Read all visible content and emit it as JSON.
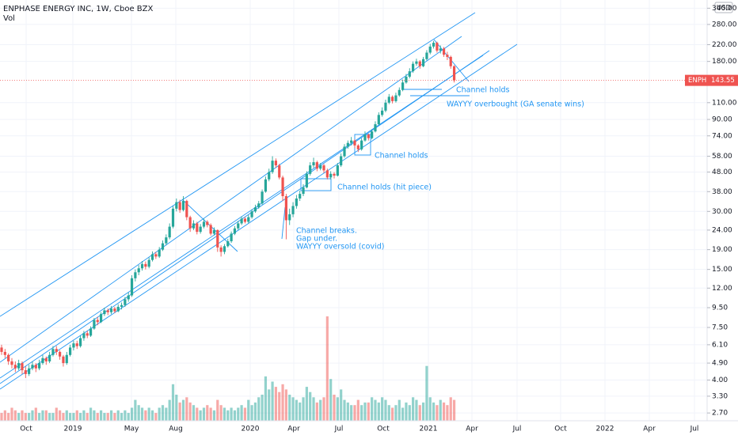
{
  "header": {
    "title": "ENPHASE ENERGY INC, 1W, Cboe BZX",
    "volume_label": "Vol",
    "currency": "USD",
    "symbol": "ENPH"
  },
  "chart_data": {
    "type": "candlestick",
    "x_labels": [
      "Oct",
      "2019",
      "May",
      "Aug",
      "2020",
      "Apr",
      "Jul",
      "Oct",
      "2021",
      "Apr",
      "Jul",
      "Oct",
      "2022",
      "Apr",
      "Jul"
    ],
    "open": [
      5.9,
      5.6,
      5.4,
      5.0,
      4.8,
      4.6,
      4.9,
      4.5,
      4.3,
      4.6,
      4.8,
      4.6,
      4.9,
      5.2,
      5.0,
      5.4,
      5.8,
      5.6,
      5.3,
      4.9,
      5.4,
      5.9,
      6.2,
      6.0,
      6.6,
      7.0,
      6.8,
      7.4,
      8.2,
      8.0,
      8.8,
      9.2,
      9.0,
      9.4,
      9.1,
      9.6,
      9.8,
      10.5,
      11.0,
      13.5,
      14.5,
      15.2,
      16.0,
      15.5,
      16.8,
      18.0,
      17.5,
      19.0,
      20.5,
      22.0,
      25.0,
      31.0,
      33.5,
      30.5,
      34.0,
      28.0,
      24.5,
      26.0,
      23.5,
      25.0,
      26.5,
      25.5,
      23.0,
      24.0,
      19.5,
      18.5,
      19.8,
      21.0,
      23.0,
      24.5,
      26.0,
      27.5,
      26.5,
      28.0,
      30.0,
      31.5,
      33.0,
      38.0,
      44.0,
      48.0,
      55.0,
      52.0,
      45.0,
      36.0,
      27.0,
      29.0,
      32.0,
      35.0,
      37.0,
      40.0,
      47.0,
      52.0,
      54.0,
      50.0,
      52.0,
      49.0,
      45.0,
      47.0,
      46.0,
      52.0,
      58.0,
      65.0,
      68.0,
      70.0,
      66.0,
      63.0,
      70.0,
      75.0,
      72.0,
      78.0,
      85.0,
      95.0,
      100.0,
      110.0,
      118.0,
      112.0,
      120.0,
      128.0,
      140.0,
      150.0,
      160.0,
      175.0,
      180.0,
      170.0,
      185.0,
      200.0,
      215.0,
      225.0,
      205.0,
      210.0,
      195.0,
      190.0,
      170.0
    ],
    "high": [
      6.1,
      5.8,
      5.5,
      5.2,
      5.0,
      5.1,
      5.0,
      4.7,
      4.8,
      5.0,
      4.9,
      5.1,
      5.4,
      5.3,
      5.6,
      6.0,
      6.0,
      5.7,
      5.4,
      5.6,
      6.1,
      6.4,
      6.4,
      6.8,
      7.2,
      7.2,
      7.6,
      8.4,
      8.5,
      9.0,
      9.5,
      9.4,
      9.7,
      9.6,
      9.9,
      10.1,
      10.8,
      11.4,
      14.0,
      15.0,
      15.8,
      16.6,
      16.5,
      17.3,
      18.6,
      18.5,
      19.6,
      21.2,
      22.8,
      26.0,
      32.0,
      35.0,
      34.5,
      36.0,
      34.5,
      28.5,
      27.0,
      26.5,
      25.8,
      27.5,
      27.0,
      26.0,
      24.8,
      24.2,
      20.0,
      20.3,
      21.6,
      23.6,
      25.2,
      26.8,
      28.3,
      28.0,
      28.8,
      30.8,
      32.5,
      34.0,
      39.0,
      45.5,
      50.0,
      58.0,
      56.5,
      53.0,
      46.0,
      37.0,
      31.0,
      33.5,
      36.5,
      38.5,
      41.5,
      48.5,
      54.0,
      57.0,
      55.0,
      53.5,
      53.0,
      50.0,
      48.5,
      48.0,
      53.5,
      60.0,
      67.0,
      70.0,
      73.0,
      71.0,
      67.0,
      72.0,
      78.0,
      76.0,
      80.0,
      88.0,
      98.0,
      104.0,
      114.0,
      122.0,
      120.0,
      124.0,
      132.0,
      145.0,
      155.0,
      166.0,
      180.0,
      186.0,
      183.0,
      190.0,
      206.0,
      222.0,
      230.0,
      228.0,
      218.0,
      214.0,
      202.0,
      193.0,
      172.0
    ],
    "low": [
      5.4,
      5.2,
      4.8,
      4.6,
      4.4,
      4.5,
      4.3,
      4.1,
      4.2,
      4.5,
      4.4,
      4.5,
      4.8,
      4.8,
      4.9,
      5.3,
      5.4,
      5.1,
      4.7,
      4.8,
      5.3,
      5.7,
      5.8,
      5.9,
      6.4,
      6.6,
      6.7,
      7.3,
      7.7,
      7.9,
      8.6,
      8.7,
      8.8,
      8.9,
      9.0,
      9.3,
      9.6,
      10.2,
      10.8,
      13.0,
      14.0,
      14.8,
      15.0,
      15.2,
      16.5,
      17.0,
      17.2,
      18.7,
      20.0,
      21.5,
      24.5,
      30.0,
      29.5,
      30.0,
      27.0,
      23.5,
      24.0,
      22.8,
      23.0,
      24.5,
      24.8,
      22.5,
      22.5,
      18.5,
      17.5,
      18.0,
      19.5,
      20.6,
      22.6,
      24.0,
      25.5,
      26.0,
      26.0,
      27.5,
      29.5,
      31.0,
      32.5,
      37.5,
      43.0,
      47.0,
      50.5,
      44.0,
      34.0,
      21.5,
      25.5,
      28.0,
      31.0,
      34.0,
      36.0,
      39.5,
      46.0,
      50.5,
      48.5,
      49.0,
      47.5,
      44.0,
      44.0,
      44.5,
      45.5,
      51.0,
      57.0,
      63.5,
      66.0,
      64.0,
      61.0,
      62.0,
      69.0,
      70.0,
      71.0,
      77.0,
      84.0,
      93.0,
      98.0,
      108.0,
      109.0,
      110.0,
      118.0,
      126.0,
      138.0,
      147.0,
      157.0,
      171.0,
      165.0,
      168.0,
      182.0,
      196.0,
      210.0,
      200.0,
      198.0,
      190.0,
      183.0,
      165.0,
      140.0
    ],
    "close": [
      5.6,
      5.4,
      5.0,
      4.8,
      4.6,
      4.9,
      4.5,
      4.3,
      4.6,
      4.8,
      4.6,
      4.9,
      5.2,
      5.0,
      5.4,
      5.8,
      5.6,
      5.3,
      4.9,
      5.4,
      5.9,
      6.2,
      6.0,
      6.6,
      7.0,
      6.8,
      7.4,
      8.2,
      8.0,
      8.8,
      9.2,
      9.0,
      9.4,
      9.1,
      9.6,
      9.8,
      10.5,
      11.0,
      13.5,
      14.5,
      15.2,
      16.0,
      15.5,
      16.8,
      18.0,
      17.5,
      19.0,
      20.5,
      22.0,
      25.0,
      31.0,
      33.5,
      30.5,
      34.0,
      28.0,
      24.5,
      26.0,
      23.5,
      25.0,
      26.5,
      25.5,
      23.0,
      24.0,
      19.5,
      18.5,
      19.8,
      21.0,
      23.0,
      24.5,
      26.0,
      27.5,
      26.5,
      28.0,
      30.0,
      31.5,
      33.0,
      38.0,
      44.0,
      48.0,
      55.0,
      52.0,
      45.0,
      36.0,
      27.0,
      29.0,
      32.0,
      35.0,
      37.0,
      40.0,
      47.0,
      52.0,
      54.0,
      50.0,
      52.0,
      49.0,
      45.0,
      47.0,
      46.0,
      52.0,
      58.0,
      65.0,
      68.0,
      70.0,
      66.0,
      63.0,
      70.0,
      75.0,
      72.0,
      78.0,
      85.0,
      95.0,
      100.0,
      110.0,
      118.0,
      112.0,
      120.0,
      128.0,
      140.0,
      150.0,
      160.0,
      175.0,
      180.0,
      170.0,
      185.0,
      200.0,
      215.0,
      225.0,
      205.0,
      210.0,
      195.0,
      190.0,
      170.0,
      143.55
    ],
    "volume": [
      3,
      4,
      3,
      5,
      4,
      3,
      4,
      3,
      3,
      4,
      5,
      3,
      4,
      4,
      3,
      3,
      5,
      4,
      3,
      4,
      3,
      3,
      4,
      3,
      4,
      3,
      5,
      4,
      3,
      4,
      3,
      3,
      4,
      3,
      4,
      3,
      4,
      3,
      5,
      8,
      6,
      5,
      4,
      5,
      4,
      3,
      5,
      6,
      5,
      8,
      14,
      10,
      7,
      8,
      9,
      7,
      6,
      5,
      4,
      5,
      6,
      5,
      4,
      8,
      6,
      5,
      4,
      5,
      4,
      5,
      6,
      5,
      8,
      6,
      7,
      9,
      10,
      17,
      12,
      15,
      13,
      11,
      14,
      12,
      10,
      9,
      8,
      7,
      9,
      13,
      11,
      9,
      7,
      8,
      9,
      40,
      16,
      10,
      9,
      12,
      8,
      7,
      6,
      6,
      8,
      6,
      7,
      7,
      9,
      8,
      7,
      9,
      8,
      6,
      5,
      6,
      8,
      5,
      7,
      6,
      9,
      8,
      6,
      7,
      21,
      9,
      7,
      6,
      8,
      7,
      6,
      9,
      8
    ],
    "ylim": [
      2.46,
      375
    ],
    "yticks": [
      {
        "value": 340,
        "label": "340.00"
      },
      {
        "value": 280,
        "label": "280.00"
      },
      {
        "value": 220,
        "label": "220.00"
      },
      {
        "value": 180,
        "label": "180.00"
      },
      {
        "value": 110,
        "label": "110.00"
      },
      {
        "value": 90,
        "label": "90.00"
      },
      {
        "value": 74,
        "label": "74.00"
      },
      {
        "value": 58,
        "label": "58.00"
      },
      {
        "value": 48,
        "label": "48.00"
      },
      {
        "value": 38,
        "label": "38.00"
      },
      {
        "value": 30,
        "label": "30.00"
      },
      {
        "value": 24,
        "label": "24.00"
      },
      {
        "value": 19,
        "label": "19.00"
      },
      {
        "value": 15,
        "label": "15.00"
      },
      {
        "value": 12,
        "label": "12.00"
      },
      {
        "value": 9.5,
        "label": "9.50"
      },
      {
        "value": 7.5,
        "label": "7.50"
      },
      {
        "value": 6.1,
        "label": "6.10"
      },
      {
        "value": 4.9,
        "label": "4.90"
      },
      {
        "value": 4,
        "label": "4.00"
      },
      {
        "value": 3.3,
        "label": "3.30"
      },
      {
        "value": 2.7,
        "label": "2.70"
      }
    ],
    "log_scale": true,
    "grid": true,
    "up_color": "#26a69a",
    "down_color": "#ef5350",
    "annotations": [
      "Channel holds",
      "WAYYY overbought (GA senate wins)",
      "Channel holds",
      "Channel holds (hit piece)",
      "Channel breaks.",
      "Gap under.",
      "WAYYY oversold (covid)"
    ]
  }
}
